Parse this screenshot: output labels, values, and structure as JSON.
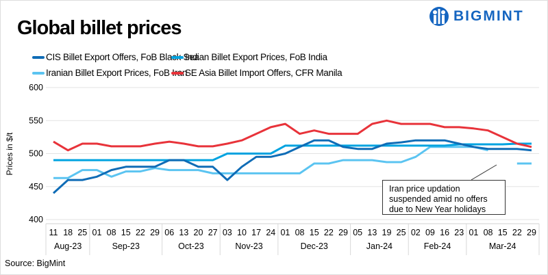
{
  "brand": {
    "logo_text": "BIGMINT",
    "color": "#1565c0"
  },
  "source": "Source:  BigMint",
  "chart_data": {
    "type": "line",
    "title": "Global billet prices",
    "ylabel": "Prices in $/t",
    "xlabel": "",
    "ylim": [
      400,
      600
    ],
    "yticks": [
      400,
      450,
      500,
      550,
      600
    ],
    "grid": true,
    "legend_position": "top",
    "x_day_labels": [
      "11",
      "18",
      "25",
      "01",
      "08",
      "15",
      "22",
      "29",
      "06",
      "13",
      "20",
      "27",
      "03",
      "10",
      "17",
      "24",
      "01",
      "08",
      "15",
      "22",
      "29",
      "05",
      "13",
      "19",
      "25",
      "02",
      "09",
      "16",
      "23",
      "01",
      "08",
      "15",
      "22",
      "29"
    ],
    "months": [
      {
        "label": "Aug-23",
        "count": 3
      },
      {
        "label": "Sep-23",
        "count": 5
      },
      {
        "label": "Oct-23",
        "count": 4
      },
      {
        "label": "Nov-23",
        "count": 4
      },
      {
        "label": "Dec-23",
        "count": 5
      },
      {
        "label": "Jan-24",
        "count": 4
      },
      {
        "label": "Feb-24",
        "count": 4
      },
      {
        "label": "Mar-24",
        "count": 5
      }
    ],
    "series": [
      {
        "name": "CIS Billet Export Offers, FoB Black Sea",
        "color": "#0f6cb6",
        "values": [
          440,
          460,
          460,
          465,
          475,
          480,
          480,
          480,
          490,
          490,
          480,
          480,
          460,
          480,
          495,
          495,
          500,
          510,
          520,
          520,
          510,
          507,
          507,
          515,
          517,
          520,
          520,
          520,
          515,
          510,
          507,
          507,
          507,
          505
        ]
      },
      {
        "name": "Indian Billet Export Prices, FoB India",
        "color": "#00a3e0",
        "values": [
          490,
          490,
          490,
          490,
          490,
          490,
          490,
          490,
          490,
          490,
          490,
          490,
          500,
          500,
          500,
          500,
          512,
          512,
          512,
          512,
          512,
          512,
          512,
          512,
          512,
          512,
          512,
          512,
          514,
          514,
          514,
          514,
          515,
          515
        ]
      },
      {
        "name": "Iranian Billet Export Prices, FoB Iran",
        "color": "#5bc4f1",
        "values": [
          463,
          463,
          475,
          475,
          465,
          473,
          473,
          478,
          475,
          475,
          475,
          470,
          470,
          470,
          470,
          470,
          470,
          470,
          485,
          485,
          490,
          490,
          490,
          487,
          487,
          495,
          510,
          510,
          510,
          510,
          505,
          null,
          485,
          485
        ]
      },
      {
        "name": "SE Asia Billet Import Offers, CFR Manila",
        "color": "#e8333a",
        "values": [
          518,
          505,
          515,
          515,
          511,
          511,
          511,
          515,
          518,
          515,
          511,
          511,
          515,
          520,
          530,
          540,
          545,
          530,
          535,
          530,
          530,
          530,
          545,
          550,
          545,
          545,
          545,
          540,
          540,
          538,
          535,
          525,
          515,
          510
        ]
      }
    ],
    "annotation": "Iran price updation suspended  amid no offers due to New Year holidays"
  }
}
